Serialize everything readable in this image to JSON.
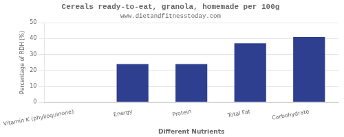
{
  "chart_data": {
    "type": "bar",
    "title": "Cereals ready-to-eat, granola, homemade per 100g",
    "subtitle": "www.dietandfitnesstoday.com",
    "xlabel": "Different Nutrients",
    "ylabel": "Percentage of RDH (%)",
    "categories": [
      "Vitamin K (phylloquinone)",
      "Energy",
      "Protein",
      "Total Fat",
      "Carbohydrate"
    ],
    "values": [
      0,
      24,
      24,
      37,
      41
    ],
    "color": "#2e3f8f",
    "ylim": [
      0,
      50
    ],
    "yticks": [
      0,
      10,
      20,
      30,
      40,
      50
    ],
    "grid": true
  }
}
